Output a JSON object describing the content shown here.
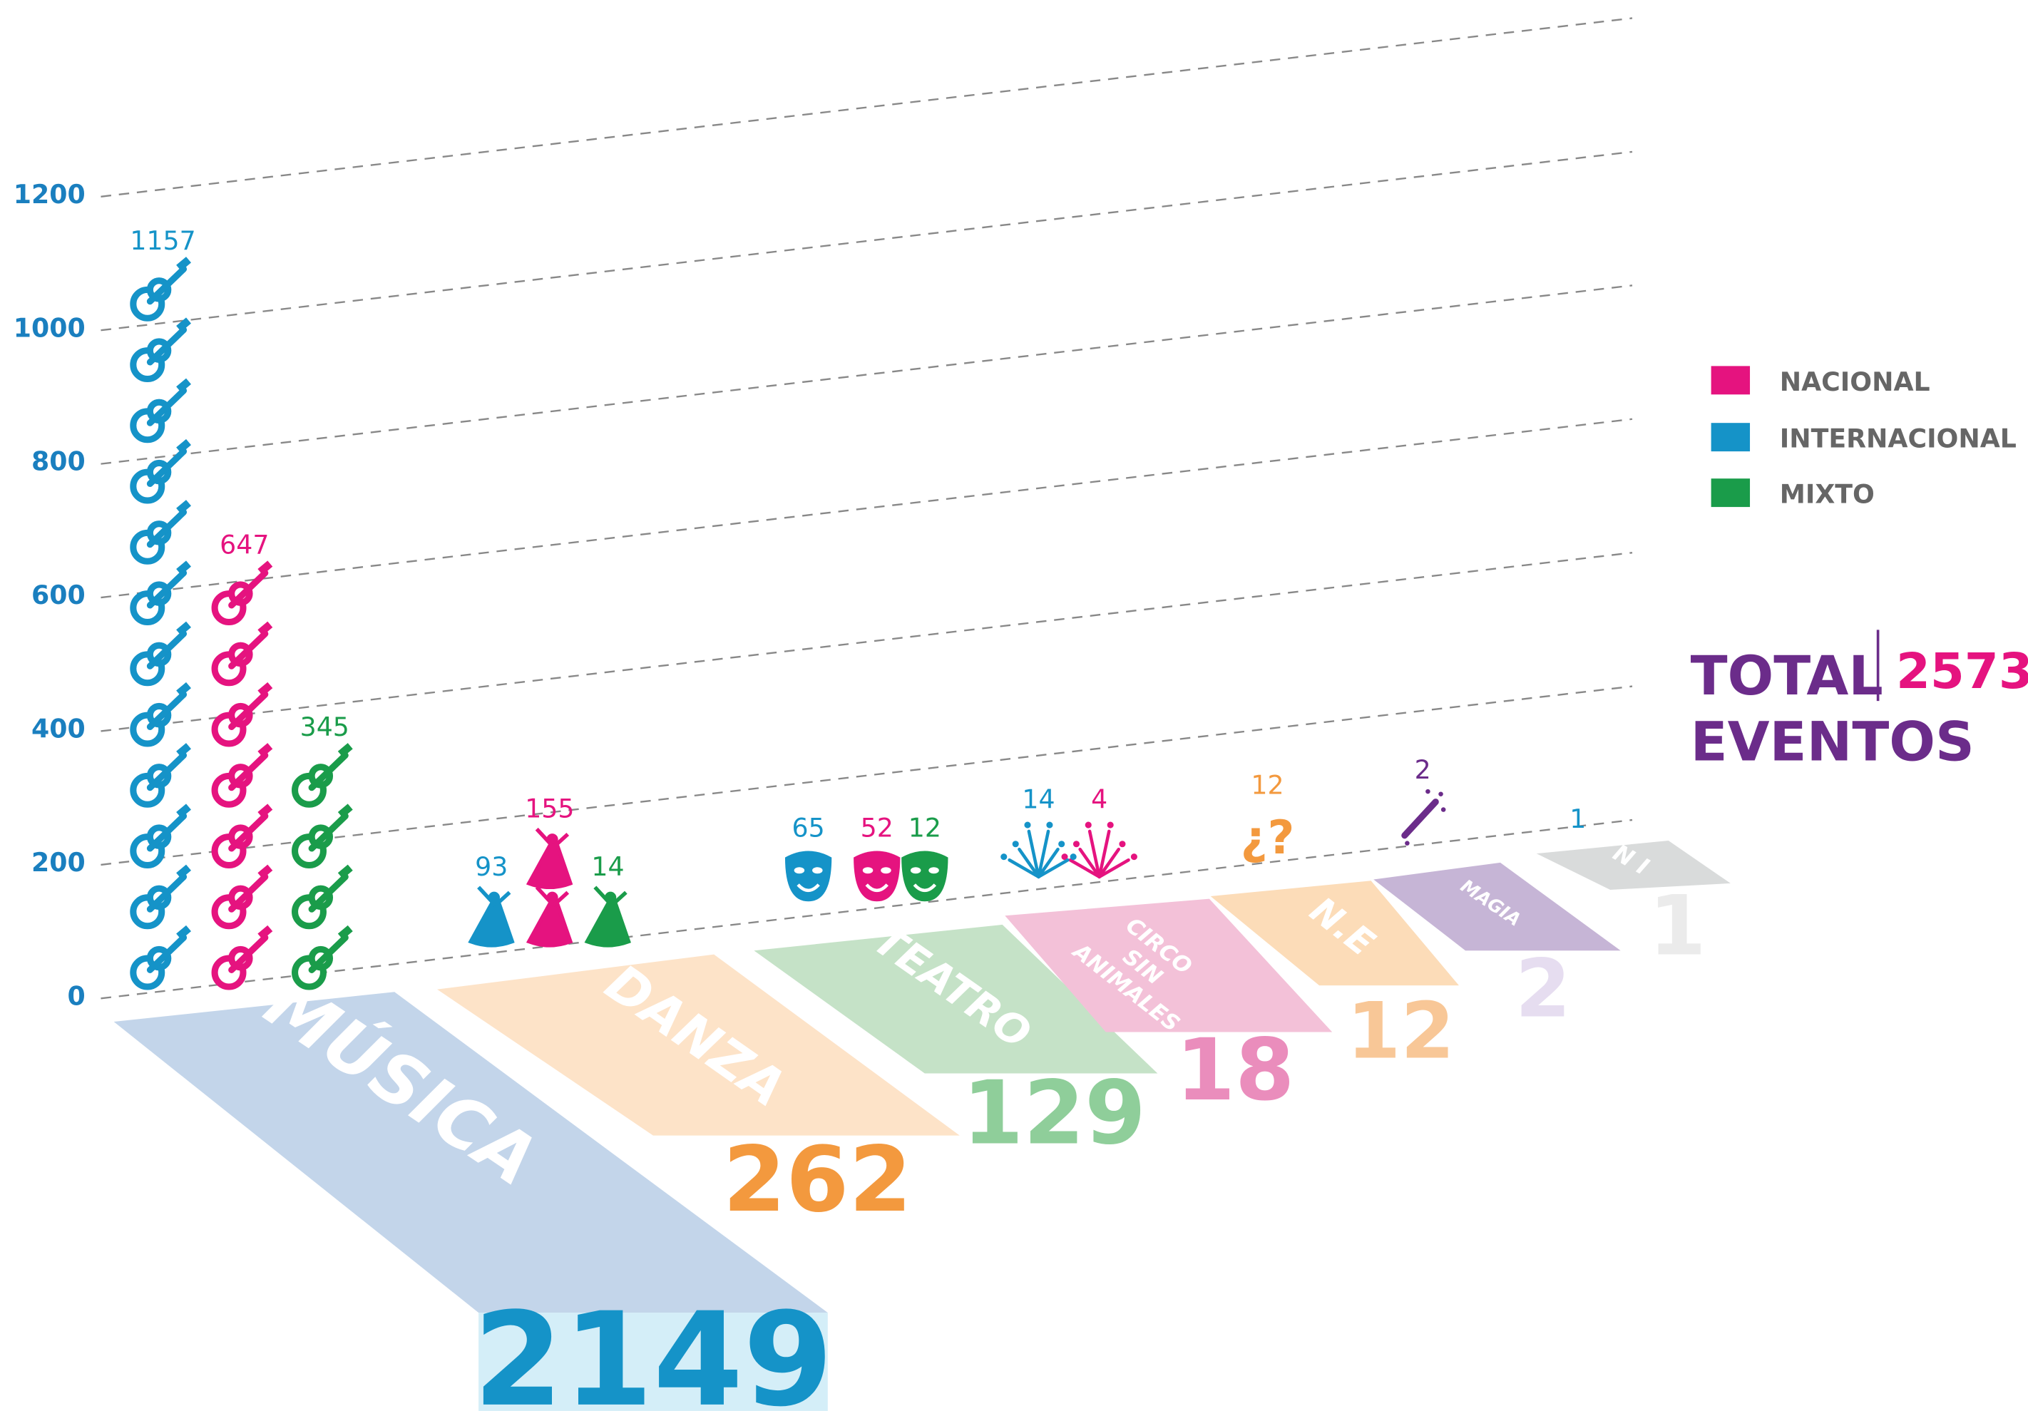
{
  "chart_data": {
    "type": "pictograph",
    "ylim": [
      0,
      1200
    ],
    "yticks": [
      0,
      200,
      400,
      600,
      800,
      1000,
      1200
    ],
    "grid": true,
    "categories": [
      "MÚSICA",
      "DANZA",
      "TEATRO",
      "CIRCO SIN ANIMALES",
      "N.E",
      "MAGIA",
      "N I"
    ],
    "totals": [
      2149,
      262,
      129,
      18,
      12,
      2,
      1
    ],
    "series": [
      {
        "name": "NACIONAL",
        "color": "#e5137f",
        "values": [
          647,
          155,
          52,
          4,
          null,
          null,
          null
        ]
      },
      {
        "name": "INTERNACIONAL",
        "color": "#1593c8",
        "values": [
          1157,
          93,
          65,
          14,
          null,
          null,
          1
        ]
      },
      {
        "name": "MIXTO",
        "color": "#1a9c4a",
        "values": [
          345,
          14,
          12,
          null,
          null,
          null,
          null
        ]
      }
    ],
    "other_values": [
      null,
      null,
      null,
      null,
      12,
      2,
      null
    ],
    "other_colors": [
      null,
      null,
      null,
      null,
      "#f3993e",
      "#6b2c8a",
      null
    ],
    "ne_icon_text": "¿?",
    "total_label": [
      "TOTAL",
      "EVENTOS"
    ],
    "total": 2573
  }
}
